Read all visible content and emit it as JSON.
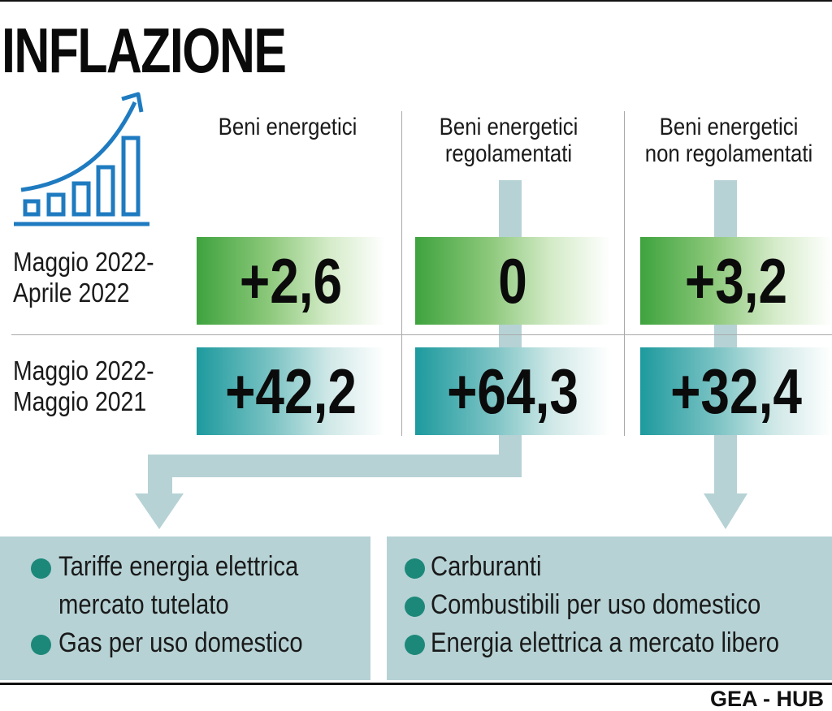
{
  "title": "INFLAZIONE",
  "columns": [
    {
      "line1": "Beni energetici",
      "line2": ""
    },
    {
      "line1": "Beni energetici",
      "line2": "regolamentati"
    },
    {
      "line1": "Beni energetici",
      "line2": "non regolamentati"
    }
  ],
  "rows": [
    {
      "label_line1": "Maggio 2022-",
      "label_line2": "Aprile 2022",
      "values": [
        "+2,6",
        "0",
        "+3,2"
      ]
    },
    {
      "label_line1": "Maggio 2022-",
      "label_line2": "Maggio 2021",
      "values": [
        "+42,2",
        "+64,3",
        "+32,4"
      ]
    }
  ],
  "panels": [
    {
      "items": [
        "Tariffe energia elettrica",
        "mercato tutelato",
        "Gas per uso domestico"
      ]
    },
    {
      "items": [
        "Carburanti",
        "Combustibili per uso domestico",
        "Energia elettrica a mercato libero"
      ]
    }
  ],
  "credit": "GEA - HUB",
  "colors": {
    "green_box": "#3ea33e",
    "teal_box": "#1d9a9e",
    "panel": "#b6d2d5",
    "arrow": "#b6d2d5",
    "bullet": "#1c8879",
    "icon": "#1f7bc0"
  },
  "icons": [
    "bar-chart-rising-arrow-icon"
  ]
}
